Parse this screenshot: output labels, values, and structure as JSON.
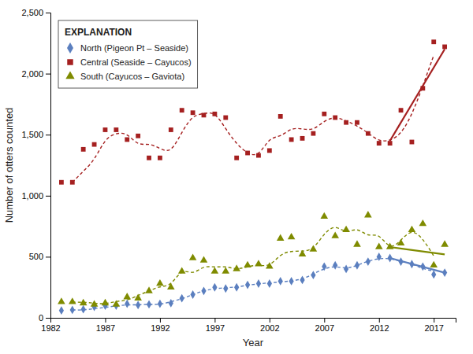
{
  "chart_data": {
    "type": "scatter",
    "xlabel": "Year",
    "ylabel": "Number of otters counted",
    "xlim": [
      1982,
      2019
    ],
    "ylim": [
      0,
      2500
    ],
    "xticks": [
      1982,
      1987,
      1992,
      1997,
      2002,
      2007,
      2012,
      2017
    ],
    "yticks": [
      0,
      500,
      {
        "value": 1000,
        "label": "1,000"
      },
      {
        "value": 1500,
        "label": "1,500"
      },
      {
        "value": 2000,
        "label": "2,000"
      },
      {
        "value": 2500,
        "label": "2,500"
      }
    ],
    "grid": false,
    "legend": "upper left",
    "legend_title": "EXPLANATION",
    "series": [
      {
        "name": "North (Pigeon Pt – Seaside)",
        "color": "#5B7FBF",
        "type": "scatter",
        "marker": "diamond",
        "x": [
          1983,
          1984,
          1985,
          1986,
          1987,
          1988,
          1989,
          1990,
          1991,
          1992,
          1993,
          1994,
          1995,
          1996,
          1997,
          1998,
          1999,
          2000,
          2001,
          2002,
          2003,
          2004,
          2005,
          2006,
          2007,
          2008,
          2009,
          2010,
          2011,
          2012,
          2013,
          2014,
          2015,
          2016,
          2017,
          2018
        ],
        "values": [
          60,
          65,
          70,
          90,
          100,
          100,
          115,
          105,
          110,
          115,
          120,
          160,
          190,
          220,
          250,
          240,
          250,
          270,
          280,
          280,
          300,
          300,
          310,
          350,
          420,
          430,
          400,
          430,
          460,
          500,
          490,
          460,
          440,
          420,
          355,
          370
        ],
        "moving_average": {
          "type": "line",
          "line_style": "dashed",
          "x": [
            1984,
            1985,
            1986,
            1987,
            1988,
            1989,
            1990,
            1991,
            1992,
            1993,
            1994,
            1995,
            1996,
            1997,
            1998,
            1999,
            2000,
            2001,
            2002,
            2003,
            2004,
            2005,
            2006,
            2007,
            2008,
            2009,
            2010,
            2011,
            2012,
            2013,
            2014,
            2015,
            2016,
            2017
          ],
          "values": [
            65,
            65,
            75,
            85,
            98,
            105,
            107,
            110,
            112,
            132,
            157,
            190,
            220,
            237,
            247,
            253,
            267,
            277,
            287,
            293,
            303,
            320,
            360,
            400,
            417,
            410,
            430,
            463,
            483,
            483,
            463,
            440,
            405,
            382
          ]
        },
        "trend": {
          "type": "line",
          "line_style": "solid",
          "x": [
            2013,
            2018
          ],
          "values": [
            490,
            370
          ]
        }
      },
      {
        "name": "Central (Seaside – Cayucos)",
        "color": "#A52020",
        "type": "scatter",
        "marker": "square",
        "x": [
          1983,
          1984,
          1985,
          1986,
          1987,
          1988,
          1989,
          1990,
          1991,
          1992,
          1993,
          1994,
          1995,
          1996,
          1997,
          1998,
          1999,
          2000,
          2001,
          2002,
          2003,
          2004,
          2005,
          2006,
          2007,
          2008,
          2009,
          2010,
          2011,
          2012,
          2013,
          2014,
          2015,
          2016,
          2017,
          2018
        ],
        "values": [
          1110,
          1110,
          1380,
          1420,
          1540,
          1540,
          1460,
          1490,
          1310,
          1310,
          1540,
          1700,
          1680,
          1660,
          1670,
          1640,
          1310,
          1350,
          1330,
          1370,
          1650,
          1460,
          1470,
          1510,
          1670,
          1640,
          1600,
          1600,
          1510,
          1430,
          1430,
          1700,
          1440,
          1880,
          2260,
          2220
        ],
        "moving_average": {
          "type": "line",
          "line_style": "dashed",
          "x": [
            1984,
            1985,
            1986,
            1987,
            1988,
            1989,
            1990,
            1991,
            1992,
            1993,
            1994,
            1995,
            1996,
            1997,
            1998,
            1999,
            2000,
            2001,
            2002,
            2003,
            2004,
            2005,
            2006,
            2007,
            2008,
            2009,
            2010,
            2011,
            2012,
            2013,
            2014,
            2015,
            2016,
            2017
          ],
          "values": [
            1110,
            1200,
            1303,
            1447,
            1507,
            1497,
            1430,
            1420,
            1387,
            1383,
            1517,
            1640,
            1673,
            1663,
            1550,
            1430,
            1353,
            1350,
            1453,
            1493,
            1543,
            1547,
            1550,
            1607,
            1637,
            1613,
            1570,
            1513,
            1457,
            1457,
            1520,
            1673,
            1900,
            2150
          ]
        },
        "trend": {
          "type": "line",
          "line_style": "solid",
          "x": [
            2013,
            2018
          ],
          "values": [
            1450,
            2200
          ]
        }
      },
      {
        "name": "South (Cayucos – Gaviota)",
        "color": "#7F8B00",
        "type": "scatter",
        "marker": "triangle",
        "x": [
          1983,
          1984,
          1985,
          1986,
          1987,
          1988,
          1989,
          1990,
          1991,
          1992,
          1993,
          1994,
          1995,
          1996,
          1997,
          1998,
          1999,
          2000,
          2001,
          2002,
          2003,
          2004,
          2005,
          2006,
          2007,
          2008,
          2009,
          2010,
          2011,
          2012,
          2013,
          2014,
          2015,
          2016,
          2017,
          2018
        ],
        "values": [
          130,
          130,
          120,
          110,
          120,
          110,
          170,
          160,
          220,
          280,
          250,
          380,
          490,
          470,
          380,
          380,
          400,
          430,
          440,
          420,
          650,
          660,
          520,
          560,
          830,
          670,
          720,
          600,
          840,
          580,
          580,
          610,
          720,
          770,
          430,
          600
        ],
        "moving_average": {
          "type": "line",
          "line_style": "dashed",
          "x": [
            1984,
            1985,
            1986,
            1987,
            1988,
            1989,
            1990,
            1991,
            1992,
            1993,
            1994,
            1995,
            1996,
            1997,
            1998,
            1999,
            2000,
            2001,
            2002,
            2003,
            2004,
            2005,
            2006,
            2007,
            2008,
            2009,
            2010,
            2011,
            2012,
            2013,
            2014,
            2015,
            2016,
            2017
          ],
          "values": [
            128,
            127,
            120,
            117,
            133,
            147,
            183,
            220,
            253,
            283,
            373,
            373,
            413,
            417,
            417,
            403,
            417,
            430,
            437,
            510,
            543,
            547,
            577,
            683,
            740,
            710,
            720,
            680,
            667,
            590,
            637,
            700,
            640,
            507
          ]
        },
        "trend": {
          "type": "line",
          "line_style": "solid",
          "x": [
            2013,
            2018
          ],
          "values": [
            580,
            520
          ]
        }
      }
    ]
  }
}
